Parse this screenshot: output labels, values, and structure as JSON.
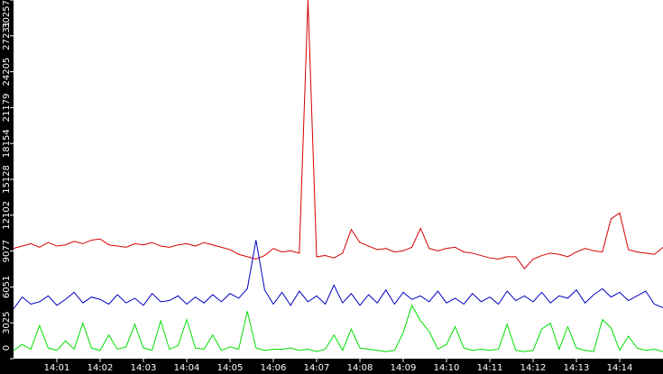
{
  "chart_data": {
    "type": "line",
    "x": [
      0,
      0.2,
      0.4,
      0.6,
      0.8,
      1,
      1.2,
      1.4,
      1.6,
      1.8,
      2,
      2.2,
      2.4,
      2.6,
      2.8,
      3,
      3.2,
      3.4,
      3.6,
      3.8,
      4,
      4.2,
      4.4,
      4.6,
      4.8,
      5,
      5.2,
      5.4,
      5.6,
      5.8,
      6,
      6.2,
      6.4,
      6.6,
      6.8,
      7,
      7.2,
      7.4,
      7.6,
      7.8,
      8,
      8.2,
      8.4,
      8.6,
      8.8,
      9,
      9.2,
      9.4,
      9.6,
      9.8,
      10,
      10.2,
      10.4,
      10.6,
      10.8,
      11,
      11.2,
      11.4,
      11.6,
      11.8,
      12,
      12.2,
      12.4,
      12.6,
      12.8,
      13,
      13.2,
      13.4,
      13.6,
      13.8,
      14,
      14.2,
      14.4,
      14.6,
      14.8,
      15
    ],
    "series": [
      {
        "color": "#d40000",
        "values": [
          9300,
          9500,
          9700,
          9400,
          9800,
          9500,
          9600,
          9900,
          9700,
          10000,
          10100,
          9600,
          9500,
          9400,
          9700,
          9600,
          9800,
          9500,
          9400,
          9600,
          9700,
          9500,
          9800,
          9600,
          9400,
          9200,
          8800,
          8600,
          8400,
          8700,
          9300,
          9000,
          9100,
          8900,
          30257,
          8600,
          8700,
          8500,
          8900,
          10900,
          9800,
          9500,
          9200,
          9300,
          9000,
          9100,
          9400,
          11000,
          9300,
          9100,
          9300,
          9400,
          9000,
          8900,
          8700,
          8500,
          8400,
          8600,
          8600,
          7600,
          8400,
          8700,
          8900,
          8800,
          8600,
          9000,
          9300,
          9100,
          9000,
          11800,
          12300,
          9200,
          9000,
          8900,
          8800,
          9400
        ]
      },
      {
        "color": "#0000c0",
        "values": [
          4200,
          5200,
          4600,
          4800,
          5300,
          4500,
          5000,
          5600,
          4700,
          5200,
          5000,
          4600,
          5400,
          4700,
          5100,
          4500,
          5500,
          4800,
          4900,
          5300,
          4600,
          5200,
          4700,
          5400,
          4800,
          5500,
          5100,
          5900,
          10000,
          5800,
          4600,
          5600,
          4500,
          5700,
          4800,
          5300,
          4600,
          6200,
          4700,
          5500,
          4500,
          5400,
          4700,
          5800,
          4600,
          5600,
          5000,
          5300,
          4800,
          5700,
          4700,
          5100,
          4600,
          5500,
          4800,
          5200,
          4600,
          5700,
          4900,
          5300,
          4800,
          5600,
          4700,
          5300,
          5100,
          5800,
          4700,
          5400,
          5900,
          5200,
          5600,
          4900,
          5300,
          5700,
          4600,
          4300
        ]
      },
      {
        "color": "#00e000",
        "values": [
          700,
          1200,
          800,
          2800,
          900,
          700,
          1500,
          800,
          3000,
          900,
          700,
          2000,
          800,
          1000,
          2900,
          900,
          700,
          3200,
          800,
          1100,
          3300,
          900,
          800,
          2000,
          700,
          1000,
          800,
          4000,
          900,
          700,
          800,
          800,
          900,
          700,
          800,
          600,
          800,
          2000,
          700,
          2500,
          900,
          800,
          700,
          600,
          700,
          2200,
          4500,
          3200,
          2300,
          800,
          1200,
          2700,
          900,
          700,
          800,
          700,
          800,
          2900,
          700,
          600,
          700,
          2500,
          3000,
          800,
          2700,
          900,
          700,
          600,
          3300,
          2600,
          700,
          1900,
          900,
          700,
          800,
          600
        ]
      }
    ],
    "xlim": [
      0,
      15
    ],
    "xticks": [
      {
        "value": 1,
        "label": "14:01"
      },
      {
        "value": 2,
        "label": "14:02"
      },
      {
        "value": 3,
        "label": "14:03"
      },
      {
        "value": 4,
        "label": "14:04"
      },
      {
        "value": 5,
        "label": "14:05"
      },
      {
        "value": 6,
        "label": "14:06"
      },
      {
        "value": 7,
        "label": "14:07"
      },
      {
        "value": 8,
        "label": "14:08"
      },
      {
        "value": 9,
        "label": "14:09"
      },
      {
        "value": 10,
        "label": "14:10"
      },
      {
        "value": 11,
        "label": "14:11"
      },
      {
        "value": 12,
        "label": "14:12"
      },
      {
        "value": 13,
        "label": "14:13"
      },
      {
        "value": 14,
        "label": "14:14"
      }
    ],
    "ylim": [
      0,
      30257
    ],
    "yticks": [
      0,
      3025,
      6051,
      9077,
      12102,
      15128,
      18154,
      21179,
      24205,
      27231,
      30257
    ]
  }
}
